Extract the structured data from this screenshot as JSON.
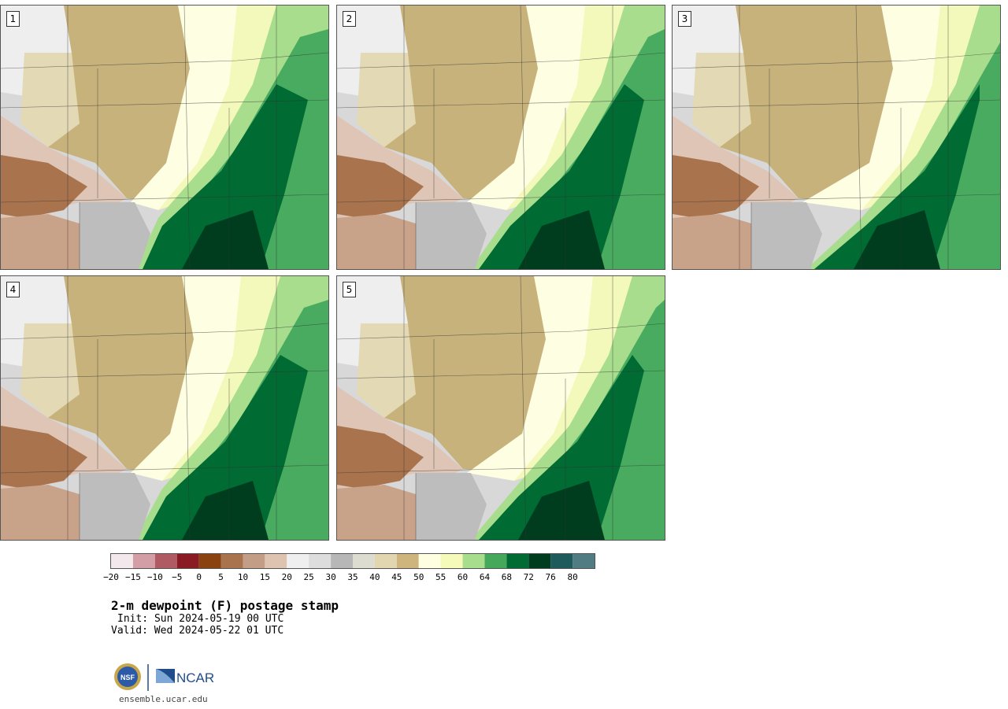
{
  "panels": [
    {
      "label": "1"
    },
    {
      "label": "2"
    },
    {
      "label": "3"
    },
    {
      "label": "4"
    },
    {
      "label": "5"
    }
  ],
  "colorbar": {
    "tick_labels": [
      "−20",
      "−15",
      "−10",
      "−5",
      "0",
      "5",
      "10",
      "15",
      "20",
      "25",
      "30",
      "35",
      "40",
      "45",
      "50",
      "55",
      "60",
      "64",
      "68",
      "72",
      "76",
      "80"
    ],
    "colors": [
      "#f3e9ec",
      "#d39ea5",
      "#b05a63",
      "#8a1a24",
      "#8a4210",
      "#a8734d",
      "#c49d86",
      "#dfc3b1",
      "#efefef",
      "#dddddd",
      "#b7b7b7",
      "#dcdcd0",
      "#e2d6b0",
      "#cdb57d",
      "#fefee0",
      "#f5f9b9",
      "#a7dd8d",
      "#45a85b",
      "#006b33",
      "#003d1f",
      "#1f5a5c",
      "#527c83"
    ],
    "bins": [
      -20,
      -15,
      -10,
      -5,
      0,
      5,
      10,
      15,
      20,
      25,
      30,
      35,
      40,
      45,
      50,
      55,
      60,
      64,
      68,
      72,
      76,
      80,
      84
    ]
  },
  "title": "2-m dewpoint (F) postage stamp",
  "init": "Init: Sun 2024-05-19 00 UTC",
  "valid": "Valid: Wed 2024-05-22 01 UTC",
  "logos": {
    "nsf": "NSF",
    "ncar": "NCAR"
  },
  "url": "ensemble.ucar.edu"
}
